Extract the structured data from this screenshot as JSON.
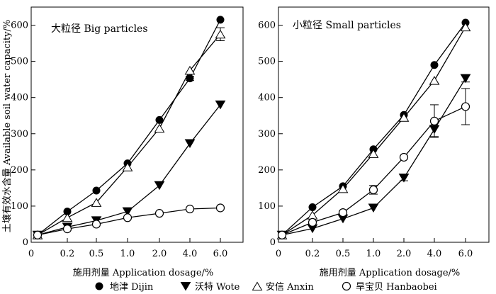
{
  "chart_data": {
    "type": "line",
    "ylabel": "土壤有效水含量 Available soil water capacity/%",
    "xlabel": "施用剂量 Application dosage/%",
    "categories": [
      "0",
      "0.2",
      "0.5",
      "1.0",
      "2.0",
      "4.0",
      "6.0"
    ],
    "x_axis_zero": "0",
    "y_axis_zero": "0",
    "yticks": [
      100,
      200,
      300,
      400,
      500,
      600
    ],
    "ylim": [
      0,
      650
    ],
    "legend": [
      {
        "name": "地津 Dijin",
        "marker": "circle-filled"
      },
      {
        "name": "沃特 Wote",
        "marker": "triangle-down-filled"
      },
      {
        "name": "安信 Anxin",
        "marker": "triangle-up-open"
      },
      {
        "name": "旱宝贝 Hanbaobei",
        "marker": "circle-open"
      }
    ],
    "panels": [
      {
        "title": "大粒径 Big particles",
        "series": [
          {
            "name": "地津 Dijin",
            "values": [
              20,
              85,
              143,
              218,
              338,
              453,
              615
            ],
            "errors": [
              0,
              0,
              0,
              0,
              0,
              6,
              0
            ]
          },
          {
            "name": "沃特 Wote",
            "values": [
              20,
              42,
              60,
              85,
              157,
              273,
              380
            ],
            "errors": [
              0,
              0,
              0,
              0,
              0,
              0,
              0
            ]
          },
          {
            "name": "安信 Anxin",
            "values": [
              20,
              68,
              110,
              208,
              315,
              475,
              575
            ],
            "errors": [
              0,
              0,
              0,
              0,
              0,
              0,
              18
            ]
          },
          {
            "name": "旱宝贝 Hanbaobei",
            "values": [
              20,
              37,
              50,
              68,
              80,
              92,
              95
            ],
            "errors": [
              0,
              0,
              0,
              0,
              0,
              0,
              0
            ]
          }
        ]
      },
      {
        "title": "小粒径 Small particles",
        "series": [
          {
            "name": "地津 Dijin",
            "values": [
              20,
              97,
              155,
              257,
              352,
              490,
              607
            ],
            "errors": [
              0,
              0,
              0,
              0,
              0,
              0,
              0
            ]
          },
          {
            "name": "沃特 Wote",
            "values": [
              20,
              38,
              65,
              95,
              178,
              312,
              453
            ],
            "errors": [
              0,
              0,
              0,
              0,
              8,
              20,
              10
            ]
          },
          {
            "name": "安信 Anxin",
            "values": [
              20,
              75,
              148,
              245,
              345,
              447,
              595
            ],
            "errors": [
              0,
              0,
              0,
              0,
              0,
              0,
              0
            ]
          },
          {
            "name": "旱宝贝 Hanbaobei",
            "values": [
              20,
              55,
              82,
              145,
              235,
              335,
              375
            ],
            "errors": [
              0,
              0,
              0,
              12,
              0,
              45,
              50
            ]
          }
        ]
      }
    ]
  }
}
